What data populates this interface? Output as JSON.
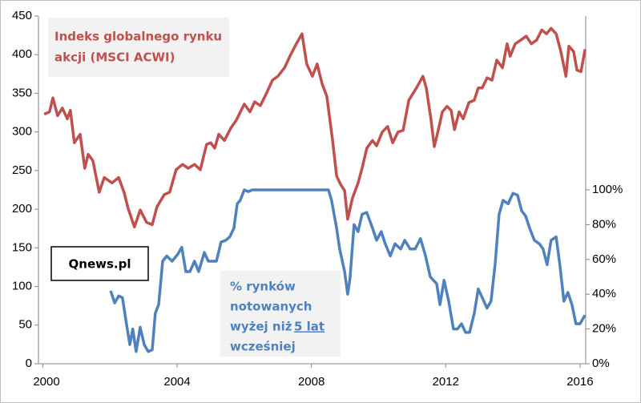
{
  "chart_data": {
    "type": "line",
    "xlim": [
      1999.87,
      2016.17
    ],
    "xticks": [
      2000,
      2004,
      2008,
      2012,
      2016
    ],
    "ylim": [
      0,
      450
    ],
    "yticks": [
      0,
      50,
      100,
      150,
      200,
      250,
      300,
      350,
      400,
      450
    ],
    "y2lim": [
      0,
      200
    ],
    "y2ticks": [
      {
        "value": 0,
        "label": "0%"
      },
      {
        "value": 20,
        "label": "20%"
      },
      {
        "value": 40,
        "label": "40%"
      },
      {
        "value": 60,
        "label": "60%"
      },
      {
        "value": 80,
        "label": "80%"
      },
      {
        "value": 100,
        "label": "100%"
      }
    ],
    "annotations": {
      "index_label": [
        "Indeks globalnego rynku",
        "akcji (MSCI ACWI)"
      ],
      "source": "Qnews.pl",
      "share_label": [
        "% rynków",
        "notowanych",
        "wyżej niż",
        "5 lat",
        "wcześniej"
      ]
    },
    "series": [
      {
        "name": "Indeks globalnego rynku akcji (MSCI ACWI)",
        "color": "#c0504d",
        "axis": "y",
        "x": [
          2000.04,
          2000.2,
          2000.3,
          2000.44,
          2000.58,
          2000.73,
          2000.82,
          2000.94,
          2001.11,
          2001.25,
          2001.35,
          2001.49,
          2001.68,
          2001.83,
          2002.06,
          2002.26,
          2002.42,
          2002.54,
          2002.73,
          2002.9,
          2003.09,
          2003.26,
          2003.4,
          2003.62,
          2003.78,
          2003.97,
          2004.16,
          2004.33,
          2004.52,
          2004.69,
          2004.88,
          2005.0,
          2005.12,
          2005.24,
          2005.41,
          2005.6,
          2005.76,
          2006.0,
          2006.17,
          2006.31,
          2006.48,
          2006.65,
          2006.84,
          2007.0,
          2007.2,
          2007.36,
          2007.55,
          2007.72,
          2007.86,
          2008.03,
          2008.17,
          2008.32,
          2008.46,
          2008.63,
          2008.75,
          2008.87,
          2008.99,
          2009.08,
          2009.22,
          2009.39,
          2009.51,
          2009.65,
          2009.82,
          2009.94,
          2010.11,
          2010.27,
          2010.42,
          2010.58,
          2010.73,
          2010.9,
          2011.13,
          2011.32,
          2011.42,
          2011.56,
          2011.66,
          2011.78,
          2011.9,
          2012.04,
          2012.16,
          2012.26,
          2012.4,
          2012.52,
          2012.69,
          2012.85,
          2012.97,
          2013.09,
          2013.23,
          2013.38,
          2013.52,
          2013.69,
          2013.83,
          2013.92,
          2014.07,
          2014.24,
          2014.4,
          2014.55,
          2014.71,
          2014.86,
          2015.0,
          2015.14,
          2015.29,
          2015.43,
          2015.58,
          2015.67,
          2015.81,
          2015.91,
          2016.03,
          2016.15
        ],
        "values": [
          323,
          326,
          344,
          321,
          331,
          317,
          328,
          286,
          297,
          253,
          271,
          263,
          222,
          241,
          234,
          241,
          222,
          201,
          177,
          199,
          183,
          180,
          203,
          219,
          222,
          251,
          258,
          253,
          258,
          251,
          284,
          286,
          279,
          297,
          289,
          305,
          315,
          336,
          326,
          339,
          334,
          349,
          367,
          372,
          383,
          398,
          414,
          427,
          388,
          372,
          388,
          362,
          346,
          289,
          243,
          232,
          224,
          187,
          214,
          234,
          253,
          279,
          289,
          282,
          300,
          307,
          286,
          300,
          302,
          341,
          357,
          372,
          357,
          317,
          281,
          303,
          326,
          333,
          328,
          303,
          326,
          317,
          338,
          341,
          357,
          357,
          370,
          367,
          393,
          383,
          414,
          398,
          414,
          419,
          424,
          414,
          419,
          432,
          427,
          434,
          427,
          404,
          372,
          411,
          404,
          380,
          378,
          407
        ]
      },
      {
        "name": "% rynków notowanych wyżej niż 5 lat wcześniej",
        "color": "#4f81bd",
        "axis": "y2",
        "x": [
          2002.02,
          2002.14,
          2002.26,
          2002.37,
          2002.49,
          2002.59,
          2002.68,
          2002.78,
          2002.9,
          2003.02,
          2003.14,
          2003.26,
          2003.35,
          2003.45,
          2003.57,
          2003.69,
          2003.85,
          2004.02,
          2004.14,
          2004.26,
          2004.38,
          2004.52,
          2004.64,
          2004.81,
          2004.93,
          2005.05,
          2005.17,
          2005.31,
          2005.45,
          2005.57,
          2005.69,
          2005.79,
          2005.88,
          2006.0,
          2006.12,
          2006.24,
          2008.51,
          2008.6,
          2008.75,
          2008.84,
          2008.99,
          2009.08,
          2009.15,
          2009.27,
          2009.39,
          2009.51,
          2009.65,
          2009.82,
          2009.94,
          2010.08,
          2010.2,
          2010.35,
          2010.49,
          2010.66,
          2010.78,
          2010.94,
          2011.09,
          2011.25,
          2011.4,
          2011.54,
          2011.73,
          2011.83,
          2011.95,
          2012.09,
          2012.23,
          2012.35,
          2012.47,
          2012.59,
          2012.71,
          2012.85,
          2012.97,
          2013.09,
          2013.23,
          2013.35,
          2013.47,
          2013.59,
          2013.71,
          2013.86,
          2014.0,
          2014.14,
          2014.26,
          2014.38,
          2014.5,
          2014.64,
          2014.79,
          2014.9,
          2015.02,
          2015.14,
          2015.29,
          2015.4,
          2015.52,
          2015.64,
          2015.76,
          2015.88,
          2016.0,
          2016.15
        ],
        "values": [
          42,
          35,
          39,
          38,
          23,
          11,
          20,
          7,
          21,
          11,
          7,
          8,
          29,
          34,
          59,
          62,
          59,
          63,
          67,
          53,
          53,
          59,
          53,
          64,
          59,
          59,
          59,
          70,
          71,
          73,
          78,
          92,
          94,
          100,
          99,
          100,
          100,
          94,
          78,
          66,
          53,
          40,
          49,
          80,
          76,
          86,
          87,
          78,
          71,
          76,
          69,
          62,
          69,
          66,
          71,
          66,
          66,
          72,
          62,
          50,
          46,
          34,
          48,
          36,
          20,
          20,
          23,
          18,
          18,
          29,
          43,
          38,
          32,
          36,
          57,
          86,
          94,
          92,
          98,
          97,
          88,
          85,
          78,
          71,
          69,
          66,
          57,
          71,
          73,
          57,
          36,
          41,
          34,
          23,
          23,
          28
        ]
      }
    ]
  }
}
